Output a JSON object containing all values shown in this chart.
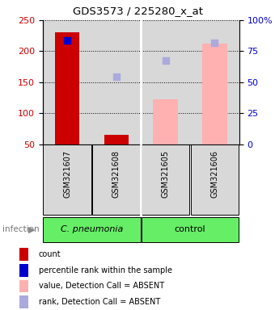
{
  "title": "GDS3573 / 225280_x_at",
  "samples": [
    "GSM321607",
    "GSM321608",
    "GSM321605",
    "GSM321606"
  ],
  "left_ylim": [
    50,
    250
  ],
  "left_yticks": [
    50,
    100,
    150,
    200,
    250
  ],
  "right_ylim": [
    0,
    100
  ],
  "right_yticks": [
    0,
    25,
    50,
    75,
    100
  ],
  "left_color": "#cc0000",
  "right_color": "#0000cc",
  "bar_count_values": [
    230,
    65,
    null,
    null
  ],
  "bar_count_color": "#cc0000",
  "bar_absent_values": [
    null,
    null,
    122,
    212
  ],
  "bar_absent_color": "#ffb0b0",
  "dot_present_values": [
    217,
    null,
    null,
    null
  ],
  "dot_present_color": "#0000cc",
  "dot_absent_percentile": [
    null,
    159,
    185,
    214
  ],
  "dot_absent_color": "#aaaadd",
  "infection_label": "infection",
  "group_label_cpn": "C. pneumonia",
  "group_label_ctrl": "control",
  "legend_items": [
    {
      "color": "#cc0000",
      "label": "count"
    },
    {
      "color": "#0000cc",
      "label": "percentile rank within the sample"
    },
    {
      "color": "#ffb0b0",
      "label": "value, Detection Call = ABSENT"
    },
    {
      "color": "#aaaadd",
      "label": "rank, Detection Call = ABSENT"
    }
  ],
  "x_positions": [
    0,
    1,
    2,
    3
  ],
  "bar_width": 0.5,
  "dot_size": 40,
  "background_color": "#ffffff",
  "plot_bg_color": "#d8d8d8",
  "cpn_bg_color": "#66ee66",
  "ctrl_bg_color": "#66ee66"
}
